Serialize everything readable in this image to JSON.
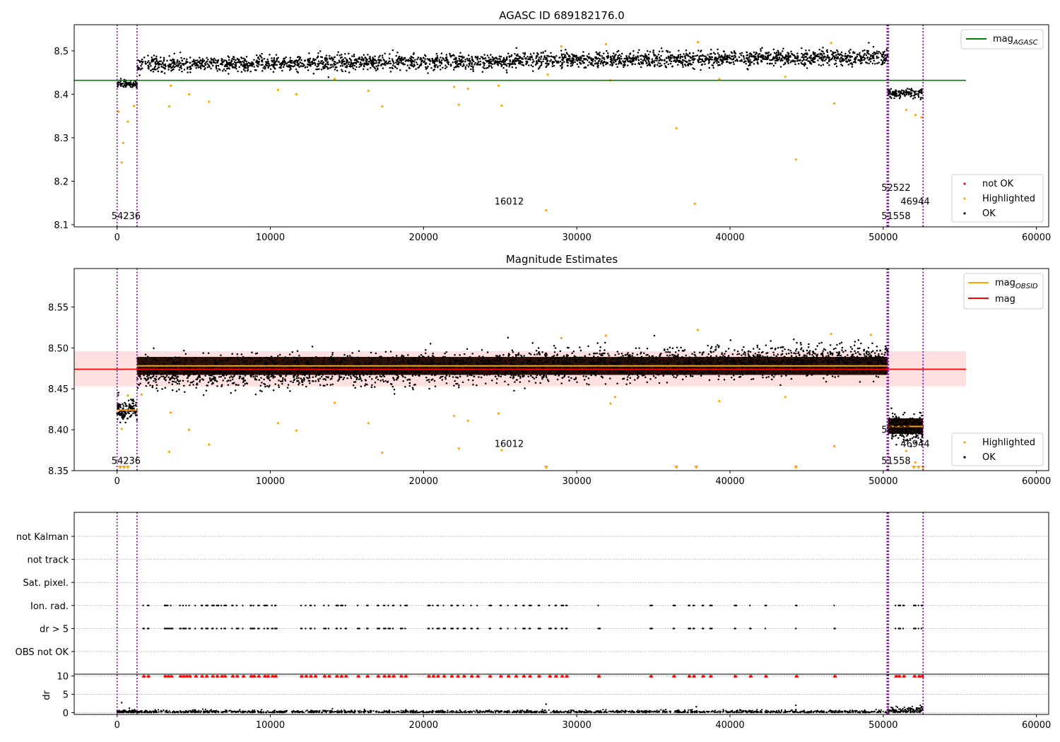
{
  "chart_data": [
    {
      "type": "scatter",
      "title": "AGASC ID 689182176.0",
      "xlim": [
        -2800,
        60800
      ],
      "ylim": [
        8.095,
        8.56
      ],
      "x_ticks": [
        0,
        10000,
        20000,
        30000,
        40000,
        50000,
        60000
      ],
      "y_ticks": [
        8.1,
        8.2,
        8.3,
        8.4,
        8.5
      ],
      "mag_agasc": 8.432,
      "mag_agasc_line_x": [
        -2800,
        55400
      ],
      "obsid_segments": [
        {
          "x": [
            0,
            1300
          ],
          "center": 8.424,
          "spread": 0.008
        },
        {
          "x": [
            1300,
            50300
          ],
          "center_start": 8.468,
          "center_end": 8.486,
          "spread": 0.016
        },
        {
          "x": [
            50300,
            52600
          ],
          "center": 8.402,
          "spread": 0.01
        }
      ],
      "highlighted_points": [
        [
          100,
          8.36
        ],
        [
          300,
          8.243
        ],
        [
          400,
          8.288
        ],
        [
          700,
          8.337
        ],
        [
          1100,
          8.373
        ],
        [
          3400,
          8.372
        ],
        [
          3500,
          8.42
        ],
        [
          4700,
          8.4
        ],
        [
          6000,
          8.383
        ],
        [
          11700,
          8.4
        ],
        [
          10500,
          8.41
        ],
        [
          14200,
          8.435
        ],
        [
          16400,
          8.408
        ],
        [
          17300,
          8.372
        ],
        [
          22000,
          8.417
        ],
        [
          22300,
          8.376
        ],
        [
          22900,
          8.413
        ],
        [
          24900,
          8.42
        ],
        [
          25100,
          8.374
        ],
        [
          28000,
          8.133
        ],
        [
          28100,
          8.445
        ],
        [
          32200,
          8.432
        ],
        [
          36500,
          8.322
        ],
        [
          37700,
          8.148
        ],
        [
          39300,
          8.435
        ],
        [
          43600,
          8.44
        ],
        [
          44300,
          8.25
        ],
        [
          46800,
          8.379
        ],
        [
          51500,
          8.364
        ],
        [
          52100,
          8.352
        ],
        [
          52500,
          8.347
        ],
        [
          29000,
          8.51
        ],
        [
          31900,
          8.515
        ],
        [
          37900,
          8.52
        ],
        [
          46600,
          8.518
        ]
      ],
      "vlines": [
        0,
        1300,
        50250,
        50300,
        50350,
        52600
      ],
      "annotations": [
        {
          "text": "54236",
          "x": 0,
          "y": 8.113
        },
        {
          "text": "16012",
          "x": 25000,
          "y": 8.146
        },
        {
          "text": "52522",
          "x": 50250,
          "y": 8.178
        },
        {
          "text": "46944",
          "x": 51500,
          "y": 8.146
        },
        {
          "text": "51558",
          "x": 50250,
          "y": 8.113
        }
      ],
      "legend_top": {
        "label": "mag",
        "sub": "AGASC",
        "color": "#008000"
      },
      "legend_bottom": [
        {
          "label": "not OK",
          "color": "#ff0000"
        },
        {
          "label": "Highlighted",
          "color": "#ffa500"
        },
        {
          "label": "OK",
          "color": "#000000"
        }
      ]
    },
    {
      "type": "scatter",
      "title": "Magnitude Estimates",
      "xlim": [
        -2800,
        60800
      ],
      "ylim": [
        8.35,
        8.597
      ],
      "x_ticks": [
        0,
        10000,
        20000,
        30000,
        40000,
        50000,
        60000
      ],
      "y_ticks": [
        8.35,
        8.4,
        8.45,
        8.5,
        8.55
      ],
      "mag_mean": 8.474,
      "mag_band": [
        8.453,
        8.496
      ],
      "mag_line_x": [
        -2800,
        55400
      ],
      "obsid_lines": [
        {
          "x": [
            0,
            1300
          ],
          "y": 8.424
        },
        {
          "x": [
            1300,
            50300
          ],
          "y": 8.478
        },
        {
          "x": [
            50300,
            52600
          ],
          "y": 8.404
        }
      ],
      "highlighted_points": [
        [
          300,
          8.401
        ],
        [
          700,
          8.442
        ],
        [
          1600,
          8.443
        ],
        [
          3400,
          8.373
        ],
        [
          3500,
          8.421
        ],
        [
          4700,
          8.4
        ],
        [
          6000,
          8.382
        ],
        [
          10500,
          8.408
        ],
        [
          11700,
          8.399
        ],
        [
          14200,
          8.433
        ],
        [
          16400,
          8.408
        ],
        [
          17300,
          8.372
        ],
        [
          22000,
          8.417
        ],
        [
          22300,
          8.377
        ],
        [
          22900,
          8.411
        ],
        [
          24900,
          8.42
        ],
        [
          25100,
          8.375
        ],
        [
          32200,
          8.432
        ],
        [
          32500,
          8.44
        ],
        [
          39300,
          8.435
        ],
        [
          43600,
          8.44
        ],
        [
          46800,
          8.38
        ],
        [
          51500,
          8.374
        ],
        [
          52100,
          8.36
        ],
        [
          29000,
          8.512
        ],
        [
          31900,
          8.515
        ],
        [
          37900,
          8.522
        ],
        [
          46600,
          8.517
        ],
        [
          49200,
          8.516
        ]
      ],
      "clipped_markers": [
        200,
        450,
        700,
        28000,
        36500,
        37800,
        44300,
        52000,
        52300,
        52600
      ],
      "vlines": [
        0,
        1300,
        50250,
        50300,
        50350,
        52600
      ],
      "annotations": [
        {
          "text": "54236",
          "x": 0,
          "y": 8.358
        },
        {
          "text": "16012",
          "x": 25000,
          "y": 8.379
        },
        {
          "text": "52522",
          "x": 50250,
          "y": 8.396
        },
        {
          "text": "46944",
          "x": 51500,
          "y": 8.379
        },
        {
          "text": "51558",
          "x": 50250,
          "y": 8.358
        }
      ],
      "legend_top": [
        {
          "label": "mag",
          "sub": "OBSID",
          "color": "#ffa500"
        },
        {
          "label": "mag",
          "sub": "",
          "color": "#ff0000"
        }
      ],
      "legend_bottom": [
        {
          "label": "Highlighted",
          "color": "#ffa500"
        },
        {
          "label": "OK",
          "color": "#000000"
        }
      ]
    },
    {
      "type": "scatter",
      "xlim": [
        -2800,
        60800
      ],
      "x_ticks": [
        0,
        10000,
        20000,
        30000,
        40000,
        50000,
        60000
      ],
      "flag_rows": [
        "not Kalman",
        "not track",
        "Sat. pixel.",
        "Ion. rad.",
        "dr > 5",
        "OBS not OK"
      ],
      "flag_events_x": [
        1700,
        2000,
        3100,
        3300,
        3500,
        4100,
        4300,
        4500,
        4700,
        5100,
        5500,
        5800,
        6200,
        6500,
        6800,
        7000,
        7500,
        7800,
        8200,
        8700,
        8900,
        9200,
        9600,
        9800,
        10100,
        10300,
        12000,
        12300,
        12600,
        12900,
        13500,
        13800,
        14300,
        14600,
        14900,
        15700,
        16300,
        17000,
        17400,
        17700,
        18000,
        18500,
        18800,
        20300,
        20600,
        20900,
        21300,
        21800,
        22200,
        22600,
        23100,
        23500,
        24300,
        25000,
        25500,
        26000,
        26500,
        26900,
        27500,
        28200,
        28600,
        29000,
        29300,
        31400,
        34800,
        36300,
        37300,
        37600,
        38200,
        38700,
        40300,
        41300,
        42300,
        44300,
        46800,
        50800,
        51000,
        51300,
        52000,
        52300,
        52500
      ],
      "dr_ylim": [
        -0.5,
        10.5
      ],
      "dr_yticks": [
        0,
        5,
        10
      ],
      "dr_ylabel": "dr",
      "vlines": [
        0,
        1300,
        50250,
        50300,
        50350,
        52600
      ]
    }
  ]
}
